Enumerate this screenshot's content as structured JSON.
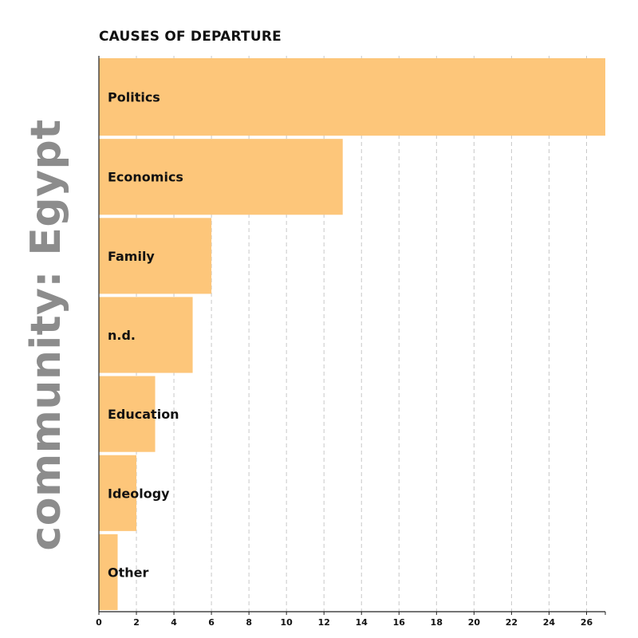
{
  "chart_data": {
    "type": "bar",
    "orientation": "horizontal",
    "title": "CAUSES OF DEPARTURE",
    "side_label": "community: Egypt",
    "categories": [
      "Politics",
      "Economics",
      "Family",
      "n.d.",
      "Education",
      "Ideology",
      "Other"
    ],
    "values": [
      27,
      13,
      6,
      5,
      3,
      2,
      1
    ],
    "xlim": [
      0,
      27
    ],
    "xticks": [
      0,
      2,
      4,
      6,
      8,
      10,
      12,
      14,
      16,
      18,
      20,
      22,
      24,
      26
    ],
    "grid": "vertical dashed",
    "bar_color": "#fdc67a",
    "title_color": "#111111",
    "side_label_color": "#8c8c8c"
  }
}
